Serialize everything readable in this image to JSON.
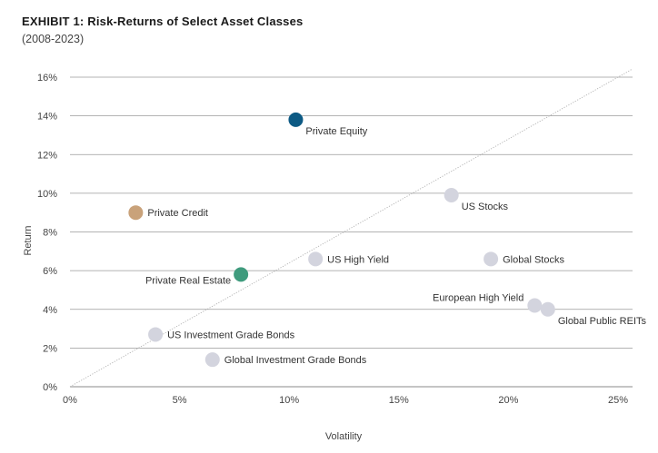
{
  "header": {
    "title": "EXHIBIT 1: Risk-Returns of Select Asset Classes",
    "subtitle": "(2008-2023)"
  },
  "chart_data": {
    "type": "scatter",
    "xlabel": "Volatility",
    "ylabel": "Return",
    "xlim": [
      0,
      25
    ],
    "ylim": [
      0,
      16
    ],
    "x_ticks": [
      "0%",
      "5%",
      "10%",
      "15%",
      "20%",
      "25%"
    ],
    "y_ticks": [
      "0%",
      "2%",
      "4%",
      "6%",
      "8%",
      "10%",
      "12%",
      "14%",
      "16%"
    ],
    "grid": "horizontal",
    "reference_line": {
      "from": [
        0,
        0
      ],
      "to": [
        25,
        16
      ],
      "style": "dotted"
    },
    "points": [
      {
        "label": "Private Equity",
        "x": 10.3,
        "y": 13.8,
        "color": "#0d5a84",
        "label_pos": "below-right"
      },
      {
        "label": "Private Credit",
        "x": 3.0,
        "y": 9.0,
        "color": "#c9a27a",
        "label_pos": "right"
      },
      {
        "label": "US Stocks",
        "x": 17.4,
        "y": 9.9,
        "color": "#d3d4de",
        "label_pos": "below-right"
      },
      {
        "label": "US High Yield",
        "x": 11.2,
        "y": 6.6,
        "color": "#d3d4de",
        "label_pos": "right"
      },
      {
        "label": "Global Stocks",
        "x": 19.2,
        "y": 6.6,
        "color": "#d3d4de",
        "label_pos": "right"
      },
      {
        "label": "Private Real Estate",
        "x": 7.8,
        "y": 5.8,
        "color": "#3f9b7d",
        "label_pos": "below-left"
      },
      {
        "label": "European High Yield",
        "x": 21.2,
        "y": 4.2,
        "color": "#d3d4de",
        "label_pos": "above-left"
      },
      {
        "label": "Global Public REITs",
        "x": 21.8,
        "y": 4.0,
        "color": "#d3d4de",
        "label_pos": "below-right"
      },
      {
        "label": "US Investment Grade Bonds",
        "x": 3.9,
        "y": 2.7,
        "color": "#d3d4de",
        "label_pos": "right"
      },
      {
        "label": "Global Investment Grade Bonds",
        "x": 6.5,
        "y": 1.4,
        "color": "#d3d4de",
        "label_pos": "right"
      }
    ]
  }
}
